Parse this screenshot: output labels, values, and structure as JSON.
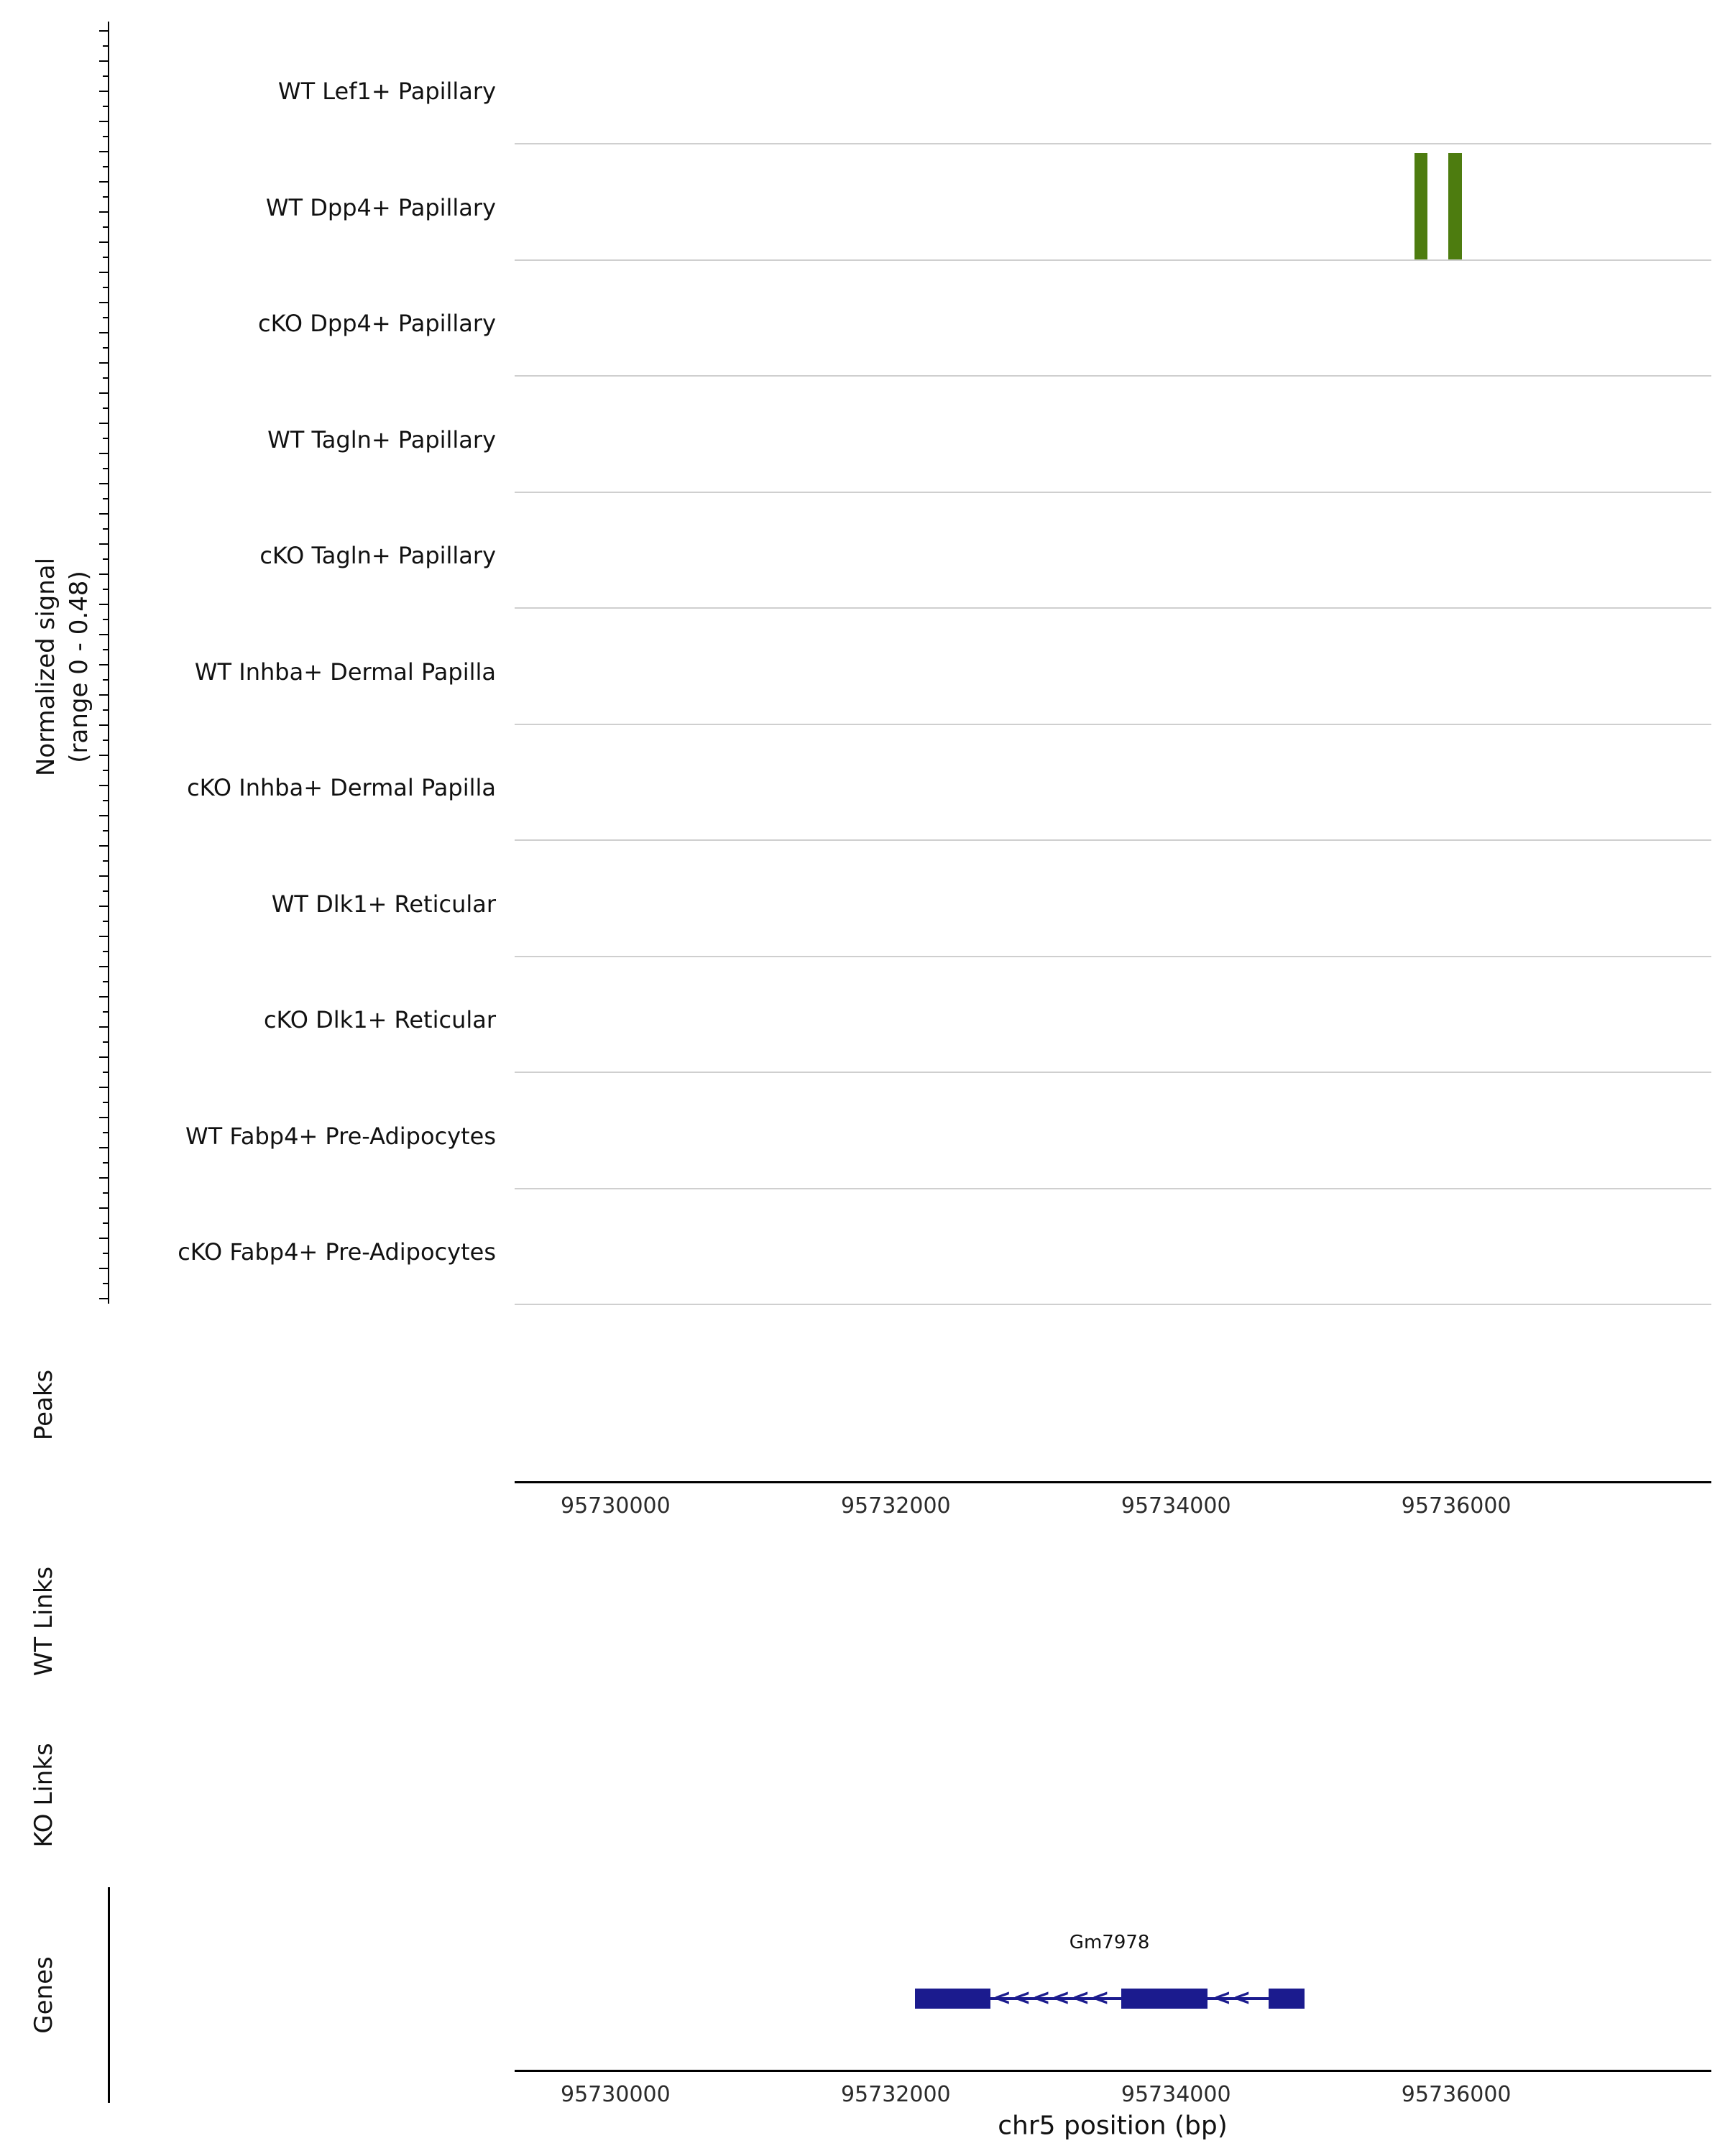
{
  "figure": {
    "y_axis_label": "Normalized signal\n(range 0 - 0.48)",
    "peaks_label": "Peaks",
    "wt_links_label": "WT Links",
    "ko_links_label": "KO Links",
    "genes_label": "Genes",
    "x_axis_title": "chr5 position (bp)"
  },
  "chart_data": {
    "type": "area",
    "subtype": "genome-browser-coverage-tracks",
    "region": {
      "chrom": "chr5",
      "start": 95729280,
      "end": 95737820
    },
    "xlabel": "chr5 position (bp)",
    "ylabel": "Normalized signal (range 0 - 0.48)",
    "ylim": [
      0,
      0.48
    ],
    "x_ticks": [
      95730000,
      95732000,
      95734000,
      95736000
    ],
    "x_tick_labels": [
      "95730000",
      "95732000",
      "95734000",
      "95736000"
    ],
    "signal_color": "#4d7c0f",
    "tracks": [
      {
        "label": "WT Lef1+ Papillary",
        "peaks": []
      },
      {
        "label": "WT Dpp4+ Papillary",
        "peaks": [
          {
            "start": 95735700,
            "end": 95735795,
            "value": 0.48
          },
          {
            "start": 95735945,
            "end": 95736040,
            "value": 0.48
          }
        ]
      },
      {
        "label": "cKO Dpp4+ Papillary",
        "peaks": []
      },
      {
        "label": "WT Tagln+ Papillary",
        "peaks": []
      },
      {
        "label": "cKO Tagln+ Papillary",
        "peaks": []
      },
      {
        "label": "WT Inhba+ Dermal Papilla",
        "peaks": []
      },
      {
        "label": "cKO Inhba+ Dermal Papilla",
        "peaks": []
      },
      {
        "label": "WT Dlk1+ Reticular",
        "peaks": []
      },
      {
        "label": "cKO Dlk1+ Reticular",
        "peaks": []
      },
      {
        "label": "WT Fabp4+ Pre-Adipocytes",
        "peaks": []
      },
      {
        "label": "cKO Fabp4+ Pre-Adipocytes",
        "peaks": []
      }
    ],
    "sections": [
      "Peaks",
      "WT Links",
      "KO Links",
      "Genes"
    ],
    "links": {
      "wt": [],
      "ko": []
    },
    "peak_intervals": [],
    "genes": [
      {
        "name": "Gm7978",
        "strand": "-",
        "start": 95732135,
        "end": 95734915,
        "exons": [
          [
            95732135,
            95732675
          ],
          [
            95733610,
            95734225
          ],
          [
            95734660,
            95734915
          ]
        ],
        "arrow_positions": [
          95732760,
          95732900,
          95733040,
          95733180,
          95733320,
          95733460,
          95734330,
          95734470
        ],
        "color": "#1b1b8e"
      }
    ]
  }
}
